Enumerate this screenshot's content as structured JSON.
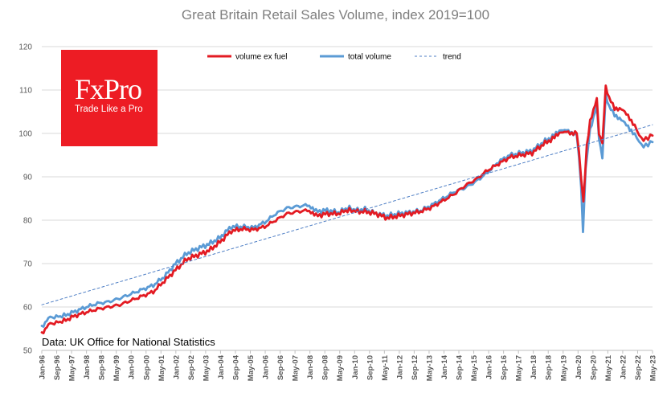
{
  "chart_data": {
    "type": "line",
    "title": "Great Britain Retail Sales Volume, index 2019=100",
    "ylim": [
      50,
      120
    ],
    "yticks": [
      50,
      60,
      70,
      80,
      90,
      100,
      110,
      120
    ],
    "x_tick_labels": [
      "Jan-96",
      "Sep-96",
      "May-97",
      "Jan-98",
      "Sep-98",
      "May-99",
      "Jan-00",
      "Sep-00",
      "May-01",
      "Jan-02",
      "Sep-02",
      "May-03",
      "Jan-04",
      "Sep-04",
      "May-05",
      "Jan-06",
      "Sep-06",
      "May-07",
      "Jan-08",
      "Sep-08",
      "May-09",
      "Jan-10",
      "Sep-10",
      "May-11",
      "Jan-12",
      "Sep-12",
      "May-13",
      "Jan-14",
      "Sep-14",
      "May-15",
      "Jan-16",
      "Sep-16",
      "May-17",
      "Jan-18",
      "Sep-18",
      "May-19",
      "Jan-20",
      "Sep-20",
      "May-21",
      "Jan-22",
      "Sep-22",
      "May-23"
    ],
    "x_range": [
      1996.0,
      2023.4
    ],
    "series": [
      {
        "name": "volume ex fuel",
        "color": "#e31b23",
        "points": [
          [
            1996.0,
            54
          ],
          [
            1996.3,
            56
          ],
          [
            1997.0,
            56.8
          ],
          [
            1997.5,
            58
          ],
          [
            1998.0,
            58.8
          ],
          [
            1998.5,
            59.5
          ],
          [
            1999.0,
            60
          ],
          [
            1999.5,
            60.5
          ],
          [
            2000.0,
            61.5
          ],
          [
            2000.5,
            62.5
          ],
          [
            2001.0,
            63.5
          ],
          [
            2001.5,
            66
          ],
          [
            2002.0,
            68.5
          ],
          [
            2002.5,
            71
          ],
          [
            2003.0,
            72
          ],
          [
            2003.5,
            73
          ],
          [
            2004.0,
            75
          ],
          [
            2004.5,
            77.5
          ],
          [
            2005.0,
            78
          ],
          [
            2005.5,
            77.8
          ],
          [
            2006.0,
            78.5
          ],
          [
            2006.5,
            80
          ],
          [
            2007.0,
            81.5
          ],
          [
            2007.5,
            82
          ],
          [
            2008.0,
            82.3
          ],
          [
            2008.3,
            81
          ],
          [
            2008.8,
            81.5
          ],
          [
            2009.3,
            81.5
          ],
          [
            2009.8,
            82.5
          ],
          [
            2010.0,
            82
          ],
          [
            2010.5,
            82
          ],
          [
            2011.0,
            81.5
          ],
          [
            2011.5,
            80.5
          ],
          [
            2012.0,
            81
          ],
          [
            2012.5,
            81.5
          ],
          [
            2013.0,
            82
          ],
          [
            2013.5,
            83
          ],
          [
            2014.0,
            84.5
          ],
          [
            2014.5,
            86
          ],
          [
            2015.0,
            88
          ],
          [
            2015.5,
            89.5
          ],
          [
            2016.0,
            91.5
          ],
          [
            2016.5,
            93
          ],
          [
            2017.0,
            94.5
          ],
          [
            2017.5,
            95
          ],
          [
            2018.0,
            95.5
          ],
          [
            2018.5,
            97.5
          ],
          [
            2019.0,
            99
          ],
          [
            2019.3,
            100.5
          ],
          [
            2019.7,
            100
          ],
          [
            2020.0,
            100.5
          ],
          [
            2020.2,
            90
          ],
          [
            2020.3,
            84
          ],
          [
            2020.45,
            97
          ],
          [
            2020.6,
            103
          ],
          [
            2020.9,
            108
          ],
          [
            2021.0,
            100
          ],
          [
            2021.15,
            98
          ],
          [
            2021.3,
            111
          ],
          [
            2021.45,
            108
          ],
          [
            2021.7,
            106
          ],
          [
            2022.0,
            105.5
          ],
          [
            2022.3,
            104
          ],
          [
            2022.6,
            102
          ],
          [
            2022.8,
            99.5
          ],
          [
            2023.0,
            98.5
          ],
          [
            2023.2,
            99
          ],
          [
            2023.4,
            99.5
          ]
        ]
      },
      {
        "name": "total volume",
        "color": "#5b9bd5",
        "points": [
          [
            1996.0,
            55.5
          ],
          [
            1996.3,
            57.5
          ],
          [
            1997.0,
            58
          ],
          [
            1997.5,
            59
          ],
          [
            1998.0,
            60
          ],
          [
            1998.5,
            60.8
          ],
          [
            1999.0,
            61.2
          ],
          [
            1999.5,
            62
          ],
          [
            2000.0,
            63
          ],
          [
            2000.5,
            64
          ],
          [
            2001.0,
            65
          ],
          [
            2001.5,
            67
          ],
          [
            2002.0,
            70
          ],
          [
            2002.5,
            72.3
          ],
          [
            2003.0,
            73.5
          ],
          [
            2003.5,
            74.5
          ],
          [
            2004.0,
            76
          ],
          [
            2004.5,
            78.5
          ],
          [
            2005.0,
            78.5
          ],
          [
            2005.5,
            78.3
          ],
          [
            2006.0,
            79.5
          ],
          [
            2006.5,
            81.5
          ],
          [
            2007.0,
            82.8
          ],
          [
            2007.5,
            83.2
          ],
          [
            2008.0,
            83.5
          ],
          [
            2008.3,
            82
          ],
          [
            2008.8,
            82.3
          ],
          [
            2009.3,
            81.8
          ],
          [
            2009.8,
            83
          ],
          [
            2010.0,
            82.3
          ],
          [
            2010.5,
            82.5
          ],
          [
            2011.0,
            81.5
          ],
          [
            2011.5,
            81
          ],
          [
            2012.0,
            81.5
          ],
          [
            2012.5,
            81.8
          ],
          [
            2013.0,
            82.2
          ],
          [
            2013.5,
            83.5
          ],
          [
            2014.0,
            85
          ],
          [
            2014.5,
            86.5
          ],
          [
            2015.0,
            87.5
          ],
          [
            2015.5,
            89
          ],
          [
            2016.0,
            91
          ],
          [
            2016.5,
            93.5
          ],
          [
            2017.0,
            95
          ],
          [
            2017.5,
            95.5
          ],
          [
            2018.0,
            96
          ],
          [
            2018.5,
            98
          ],
          [
            2019.0,
            99.5
          ],
          [
            2019.3,
            101
          ],
          [
            2019.7,
            100.3
          ],
          [
            2020.0,
            100
          ],
          [
            2020.2,
            88
          ],
          [
            2020.28,
            77
          ],
          [
            2020.4,
            92
          ],
          [
            2020.6,
            101
          ],
          [
            2020.9,
            106.5
          ],
          [
            2021.0,
            99
          ],
          [
            2021.15,
            94.5
          ],
          [
            2021.3,
            109
          ],
          [
            2021.45,
            106
          ],
          [
            2021.7,
            104.5
          ],
          [
            2022.0,
            103
          ],
          [
            2022.3,
            101.5
          ],
          [
            2022.6,
            100
          ],
          [
            2022.8,
            98
          ],
          [
            2023.0,
            97
          ],
          [
            2023.2,
            97.5
          ],
          [
            2023.4,
            98
          ]
        ]
      },
      {
        "name": "trend",
        "color": "#4f7fc5",
        "dashed": true,
        "points": [
          [
            1996.0,
            60.5
          ],
          [
            2023.4,
            102
          ]
        ]
      }
    ]
  },
  "logo": {
    "brand": "FxPro",
    "tagline": "Trade Like a Pro"
  },
  "source_note": "Data: UK Office for National Statistics"
}
